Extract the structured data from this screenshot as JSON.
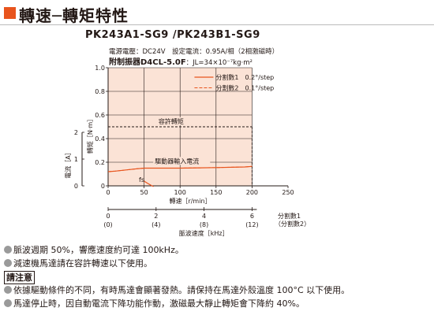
{
  "header": {
    "title": "轉速─轉矩特性",
    "model": "PK243A1-SG9 /PK243B1-SG9",
    "spec_line1": "電源電壓：DC24V　設定電流：0.95A/相（2相激磁時）",
    "spec_line2_bold": "附制振器D4CL-5.0F",
    "spec_line2_rest": "：JL=34×10⁻⁷kg·m²"
  },
  "colors": {
    "accent": "#e8541d",
    "curve": "#e8541d",
    "plot_bg": "#fbe3d6",
    "text": "#231815"
  },
  "chart_data": {
    "type": "line",
    "xlabel": "轉速［r/min］",
    "ylabel_torque": "轉矩［N·m］",
    "ylabel_current": "電流［A］",
    "xlim": [
      0,
      250
    ],
    "ylim": [
      0,
      1.0
    ],
    "x_ticks": [
      "0",
      "50",
      "100",
      "150",
      "200",
      "250"
    ],
    "y_ticks": [
      "0",
      "0.2",
      "0.4",
      "0.6",
      "0.8",
      "1.0"
    ],
    "current_ticks": [
      "0",
      "1",
      "2"
    ],
    "series": [
      {
        "name": "分割數1　0.2°/step",
        "style": "solid",
        "x": [
          0,
          10,
          25,
          40,
          50,
          60,
          100,
          150,
          190,
          200
        ],
        "y": [
          0.12,
          0.125,
          0.135,
          0.145,
          0.15,
          0.15,
          0.15,
          0.155,
          0.16,
          0.165
        ]
      },
      {
        "name": "分割數2　0.1°/step",
        "style": "dashed",
        "x": [
          0,
          10,
          25,
          40,
          50,
          60,
          100,
          150,
          190,
          200
        ],
        "y": [
          0.12,
          0.125,
          0.135,
          0.145,
          0.15,
          0.15,
          0.15,
          0.155,
          0.16,
          0.165
        ]
      }
    ],
    "permissible_torque": {
      "label": "容許轉矩",
      "value": 0.5,
      "x_end": 200
    },
    "drive_current": {
      "label": "驅動器輸入電流"
    },
    "fs_label": "fs",
    "pulse_axis": {
      "label": "脈波速度［kHz］",
      "ticks": [
        "0",
        "2",
        "4",
        "6"
      ],
      "ticks_div2": [
        "(0)",
        "(4)",
        "(8)",
        "(12)"
      ],
      "legend_div1": "分割數1",
      "legend_div2": "（分割數2）"
    }
  },
  "notes": {
    "note1": "脈波週期 50%，響應速度約可達 100kHz。",
    "note2": "減速機馬達請在容許轉速以下使用。",
    "caution_label": "請注意",
    "note3": "依據驅動條件的不同，有時馬達會顯著發熱。請保持在馬達外殼溫度 100°C 以下使用。",
    "note4": "馬達停止時，因自動電流下降功能作動，激磁最大靜止轉矩會下降約 40%。"
  }
}
